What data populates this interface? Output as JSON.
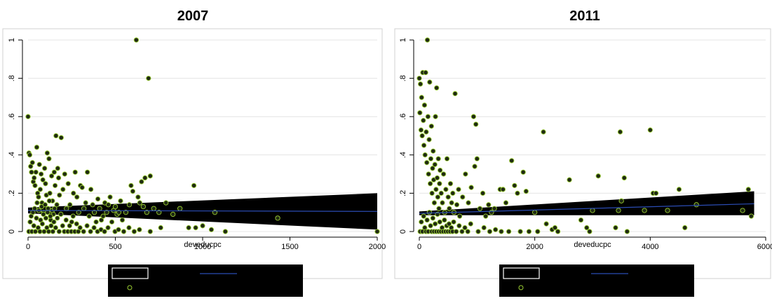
{
  "chart_data": [
    {
      "type": "scatter",
      "title": "2007",
      "xlabel": "deveducpc",
      "ylabel": "",
      "xlim": [
        0,
        2000
      ],
      "ylim": [
        0,
        1
      ],
      "xticks": [
        "0",
        "500",
        "1000",
        "1500",
        "2000"
      ],
      "yticks": [
        "0",
        ".2",
        ".4",
        ".6",
        ".8",
        "1"
      ],
      "grid": true,
      "colors": {
        "marker_fill": "#1f2a12",
        "marker_edge": "#9acd32",
        "ci_band": "#000000",
        "fit_line": "#2b4cb3",
        "legend_bg": "#000000"
      },
      "legend": {
        "placement": "bottom",
        "entries": [
          "",
          "",
          ""
        ]
      },
      "fit": {
        "x": [
          0,
          2000
        ],
        "y": [
          0.11,
          0.105
        ],
        "ci_low": [
          0.095,
          0.01
        ],
        "ci_high": [
          0.125,
          0.2
        ]
      },
      "points": [
        [
          0,
          0.6
        ],
        [
          5,
          0.41
        ],
        [
          10,
          0.4
        ],
        [
          15,
          0.34
        ],
        [
          20,
          0.31
        ],
        [
          25,
          0.36
        ],
        [
          30,
          0.26
        ],
        [
          35,
          0.28
        ],
        [
          40,
          0.24
        ],
        [
          45,
          0.31
        ],
        [
          50,
          0.44
        ],
        [
          55,
          0.2
        ],
        [
          60,
          0.18
        ],
        [
          65,
          0.35
        ],
        [
          70,
          0.22
        ],
        [
          75,
          0.3
        ],
        [
          80,
          0.15
        ],
        [
          85,
          0.27
        ],
        [
          90,
          0.1
        ],
        [
          95,
          0.33
        ],
        [
          100,
          0.25
        ],
        [
          105,
          0.19
        ],
        [
          110,
          0.41
        ],
        [
          115,
          0.12
        ],
        [
          120,
          0.38
        ],
        [
          125,
          0.2
        ],
        [
          130,
          0.06
        ],
        [
          135,
          0.29
        ],
        [
          140,
          0.16
        ],
        [
          145,
          0.09
        ],
        [
          150,
          0.31
        ],
        [
          155,
          0.24
        ],
        [
          160,
          0.5
        ],
        [
          165,
          0.14
        ],
        [
          170,
          0.33
        ],
        [
          175,
          0.28
        ],
        [
          180,
          0.19
        ],
        [
          190,
          0.49
        ],
        [
          200,
          0.22
        ],
        [
          210,
          0.3
        ],
        [
          220,
          0.12
        ],
        [
          230,
          0.25
        ],
        [
          240,
          0.14
        ],
        [
          250,
          0.05
        ],
        [
          260,
          0.2
        ],
        [
          270,
          0.31
        ],
        [
          280,
          0.18
        ],
        [
          290,
          0.1
        ],
        [
          300,
          0.24
        ],
        [
          310,
          0.23
        ],
        [
          320,
          0.12
        ],
        [
          330,
          0.15
        ],
        [
          340,
          0.31
        ],
        [
          350,
          0.08
        ],
        [
          360,
          0.22
        ],
        [
          370,
          0.14
        ],
        [
          380,
          0.1
        ],
        [
          390,
          0.05
        ],
        [
          400,
          0.17
        ],
        [
          410,
          0.12
        ],
        [
          420,
          0.06
        ],
        [
          430,
          0.08
        ],
        [
          440,
          0.15
        ],
        [
          450,
          0.1
        ],
        [
          460,
          0.14
        ],
        [
          470,
          0.18
        ],
        [
          480,
          0.05
        ],
        [
          490,
          0.11
        ],
        [
          500,
          0.13
        ],
        [
          510,
          0.09
        ],
        [
          520,
          0.1
        ],
        [
          530,
          0.16
        ],
        [
          540,
          0.06
        ],
        [
          560,
          0.1
        ],
        [
          580,
          0.14
        ],
        [
          590,
          0.24
        ],
        [
          600,
          0.21
        ],
        [
          620,
          1.0
        ],
        [
          630,
          0.18
        ],
        [
          640,
          0.15
        ],
        [
          650,
          0.26
        ],
        [
          660,
          0.13
        ],
        [
          670,
          0.28
        ],
        [
          680,
          0.1
        ],
        [
          690,
          0.8
        ],
        [
          700,
          0.29
        ],
        [
          720,
          0.12
        ],
        [
          750,
          0.1
        ],
        [
          790,
          0.15
        ],
        [
          830,
          0.09
        ],
        [
          870,
          0.12
        ],
        [
          920,
          0.02
        ],
        [
          950,
          0.24
        ],
        [
          960,
          0.02
        ],
        [
          1000,
          0.03
        ],
        [
          1050,
          0.01
        ],
        [
          1070,
          0.1
        ],
        [
          1130,
          0.0
        ],
        [
          1430,
          0.07
        ],
        [
          2000,
          0.0
        ],
        [
          5,
          0.0
        ],
        [
          12,
          0.05
        ],
        [
          18,
          0.08
        ],
        [
          22,
          0.0
        ],
        [
          28,
          0.1
        ],
        [
          33,
          0.03
        ],
        [
          38,
          0.12
        ],
        [
          42,
          0.0
        ],
        [
          48,
          0.07
        ],
        [
          52,
          0.15
        ],
        [
          58,
          0.02
        ],
        [
          62,
          0.11
        ],
        [
          68,
          0.0
        ],
        [
          72,
          0.06
        ],
        [
          78,
          0.13
        ],
        [
          82,
          0.04
        ],
        [
          88,
          0.09
        ],
        [
          92,
          0.0
        ],
        [
          98,
          0.14
        ],
        [
          102,
          0.07
        ],
        [
          108,
          0.02
        ],
        [
          112,
          0.1
        ],
        [
          118,
          0.0
        ],
        [
          122,
          0.16
        ],
        [
          128,
          0.08
        ],
        [
          132,
          0.03
        ],
        [
          138,
          0.11
        ],
        [
          142,
          0.0
        ],
        [
          148,
          0.05
        ],
        [
          152,
          0.12
        ],
        [
          158,
          0.02
        ],
        [
          168,
          0.07
        ],
        [
          178,
          0.0
        ],
        [
          188,
          0.09
        ],
        [
          198,
          0.03
        ],
        [
          208,
          0.0
        ],
        [
          218,
          0.06
        ],
        [
          228,
          0.0
        ],
        [
          238,
          0.03
        ],
        [
          248,
          0.0
        ],
        [
          258,
          0.08
        ],
        [
          268,
          0.0
        ],
        [
          278,
          0.04
        ],
        [
          288,
          0.0
        ],
        [
          298,
          0.02
        ],
        [
          318,
          0.0
        ],
        [
          338,
          0.03
        ],
        [
          358,
          0.0
        ],
        [
          378,
          0.02
        ],
        [
          398,
          0.0
        ],
        [
          418,
          0.01
        ],
        [
          438,
          0.0
        ],
        [
          458,
          0.02
        ],
        [
          498,
          0.0
        ],
        [
          518,
          0.01
        ],
        [
          548,
          0.0
        ],
        [
          578,
          0.02
        ],
        [
          608,
          0.0
        ],
        [
          638,
          0.01
        ],
        [
          700,
          0.0
        ],
        [
          760,
          0.02
        ]
      ]
    },
    {
      "type": "scatter",
      "title": "2011",
      "xlabel": "deveducpc",
      "ylabel": "",
      "xlim": [
        0,
        6000
      ],
      "ylim": [
        0,
        1
      ],
      "xticks": [
        "0",
        "2000",
        "4000",
        "6000"
      ],
      "yticks": [
        "0",
        ".2",
        ".4",
        ".6",
        ".8",
        "1"
      ],
      "grid": true,
      "colors": {
        "marker_fill": "#1f2a12",
        "marker_edge": "#9acd32",
        "ci_band": "#000000",
        "fit_line": "#2b4cb3",
        "legend_bg": "#000000"
      },
      "legend": {
        "placement": "bottom",
        "entries": [
          "",
          "",
          ""
        ]
      },
      "fit": {
        "x": [
          0,
          5800
        ],
        "y": [
          0.095,
          0.145
        ],
        "ci_low": [
          0.085,
          0.085
        ],
        "ci_high": [
          0.105,
          0.21
        ]
      },
      "points": [
        [
          0,
          0.8
        ],
        [
          10,
          0.62
        ],
        [
          20,
          0.77
        ],
        [
          30,
          0.53
        ],
        [
          40,
          0.7
        ],
        [
          50,
          0.5
        ],
        [
          60,
          0.83
        ],
        [
          70,
          0.58
        ],
        [
          80,
          0.45
        ],
        [
          90,
          0.66
        ],
        [
          100,
          0.4
        ],
        [
          110,
          0.83
        ],
        [
          120,
          0.52
        ],
        [
          130,
          0.36
        ],
        [
          140,
          1.0
        ],
        [
          150,
          0.6
        ],
        [
          160,
          0.3
        ],
        [
          170,
          0.48
        ],
        [
          180,
          0.78
        ],
        [
          190,
          0.25
        ],
        [
          200,
          0.38
        ],
        [
          210,
          0.55
        ],
        [
          220,
          0.2
        ],
        [
          230,
          0.33
        ],
        [
          240,
          0.42
        ],
        [
          250,
          0.27
        ],
        [
          260,
          0.15
        ],
        [
          270,
          0.35
        ],
        [
          280,
          0.6
        ],
        [
          290,
          0.22
        ],
        [
          300,
          0.75
        ],
        [
          310,
          0.28
        ],
        [
          320,
          0.18
        ],
        [
          330,
          0.38
        ],
        [
          340,
          0.12
        ],
        [
          350,
          0.25
        ],
        [
          360,
          0.32
        ],
        [
          380,
          0.2
        ],
        [
          400,
          0.15
        ],
        [
          420,
          0.3
        ],
        [
          440,
          0.1
        ],
        [
          460,
          0.22
        ],
        [
          480,
          0.38
        ],
        [
          500,
          0.18
        ],
        [
          520,
          0.12
        ],
        [
          540,
          0.25
        ],
        [
          560,
          0.15
        ],
        [
          580,
          0.2
        ],
        [
          600,
          0.1
        ],
        [
          620,
          0.72
        ],
        [
          650,
          0.14
        ],
        [
          680,
          0.22
        ],
        [
          700,
          0.08
        ],
        [
          750,
          0.18
        ],
        [
          800,
          0.3
        ],
        [
          850,
          0.15
        ],
        [
          900,
          0.23
        ],
        [
          940,
          0.6
        ],
        [
          960,
          0.34
        ],
        [
          980,
          0.56
        ],
        [
          1000,
          0.38
        ],
        [
          1050,
          0.12
        ],
        [
          1100,
          0.2
        ],
        [
          1150,
          0.08
        ],
        [
          1200,
          0.14
        ],
        [
          1250,
          0.1
        ],
        [
          1300,
          0.12
        ],
        [
          1400,
          0.22
        ],
        [
          1450,
          0.22
        ],
        [
          1500,
          0.15
        ],
        [
          1600,
          0.37
        ],
        [
          1650,
          0.24
        ],
        [
          1700,
          0.2
        ],
        [
          1800,
          0.31
        ],
        [
          1850,
          0.21
        ],
        [
          2000,
          0.1
        ],
        [
          2150,
          0.52
        ],
        [
          2200,
          0.04
        ],
        [
          2300,
          0.01
        ],
        [
          2400,
          0.0
        ],
        [
          2600,
          0.27
        ],
        [
          2800,
          0.06
        ],
        [
          2900,
          0.02
        ],
        [
          3000,
          0.11
        ],
        [
          3100,
          0.29
        ],
        [
          3400,
          0.02
        ],
        [
          3450,
          0.11
        ],
        [
          3480,
          0.52
        ],
        [
          3500,
          0.16
        ],
        [
          3550,
          0.28
        ],
        [
          3600,
          0.0
        ],
        [
          3900,
          0.11
        ],
        [
          4000,
          0.53
        ],
        [
          4050,
          0.2
        ],
        [
          4100,
          0.2
        ],
        [
          4300,
          0.11
        ],
        [
          4500,
          0.22
        ],
        [
          4600,
          0.02
        ],
        [
          4800,
          0.14
        ],
        [
          5600,
          0.11
        ],
        [
          5700,
          0.22
        ],
        [
          5750,
          0.08
        ],
        [
          15,
          0.0
        ],
        [
          35,
          0.05
        ],
        [
          55,
          0.0
        ],
        [
          75,
          0.08
        ],
        [
          95,
          0.02
        ],
        [
          115,
          0.0
        ],
        [
          135,
          0.06
        ],
        [
          155,
          0.0
        ],
        [
          175,
          0.1
        ],
        [
          195,
          0.03
        ],
        [
          215,
          0.0
        ],
        [
          235,
          0.07
        ],
        [
          255,
          0.0
        ],
        [
          275,
          0.04
        ],
        [
          295,
          0.0
        ],
        [
          315,
          0.09
        ],
        [
          335,
          0.0
        ],
        [
          355,
          0.05
        ],
        [
          375,
          0.0
        ],
        [
          395,
          0.02
        ],
        [
          415,
          0.0
        ],
        [
          435,
          0.06
        ],
        [
          455,
          0.0
        ],
        [
          475,
          0.03
        ],
        [
          495,
          0.0
        ],
        [
          515,
          0.04
        ],
        [
          535,
          0.0
        ],
        [
          555,
          0.02
        ],
        [
          575,
          0.0
        ],
        [
          595,
          0.05
        ],
        [
          640,
          0.0
        ],
        [
          690,
          0.03
        ],
        [
          740,
          0.0
        ],
        [
          790,
          0.02
        ],
        [
          840,
          0.0
        ],
        [
          890,
          0.04
        ],
        [
          1020,
          0.0
        ],
        [
          1120,
          0.02
        ],
        [
          1220,
          0.0
        ],
        [
          1320,
          0.01
        ],
        [
          1420,
          0.0
        ],
        [
          1550,
          0.0
        ],
        [
          1750,
          0.0
        ],
        [
          1900,
          0.0
        ],
        [
          2050,
          0.0
        ],
        [
          2350,
          0.02
        ],
        [
          2950,
          0.0
        ]
      ]
    }
  ]
}
